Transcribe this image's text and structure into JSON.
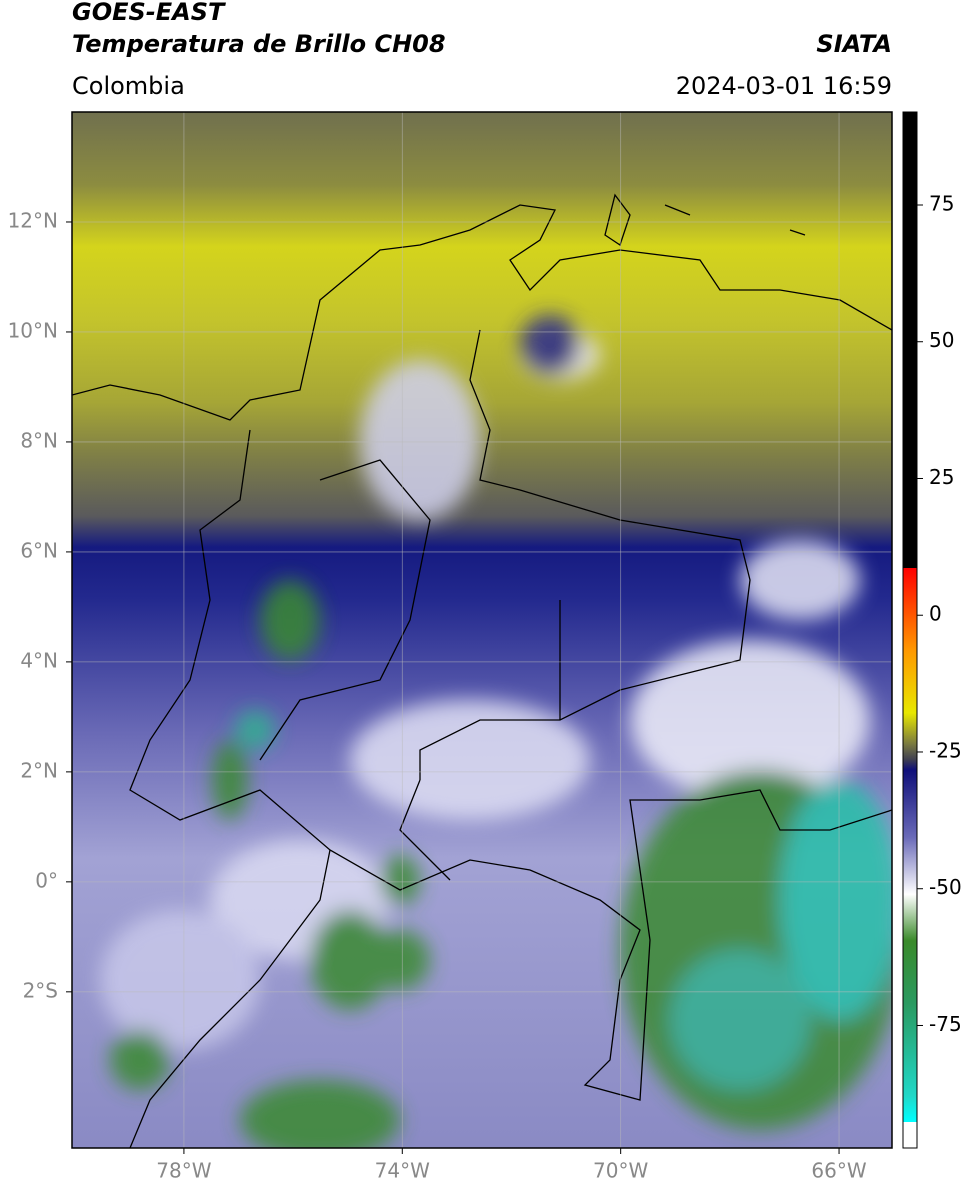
{
  "chart_data": {
    "type": "map",
    "title": "GOES-EAST",
    "subtitle": "Temperatura de Brillo CH08",
    "source": "SIATA",
    "region": "Colombia",
    "datetime": "2024-03-01 16:59",
    "xlim": [
      -80.05,
      -65.03
    ],
    "ylim": [
      -4.84,
      14
    ],
    "xticks": [
      {
        "value": -78,
        "label": "78°W"
      },
      {
        "value": -74,
        "label": "74°W"
      },
      {
        "value": -70,
        "label": "70°W"
      },
      {
        "value": -66,
        "label": "66°W"
      }
    ],
    "yticks": [
      {
        "value": 12,
        "label": "12°N"
      },
      {
        "value": 10,
        "label": "10°N"
      },
      {
        "value": 8,
        "label": "8°N"
      },
      {
        "value": 6,
        "label": "6°N"
      },
      {
        "value": 4,
        "label": "4°N"
      },
      {
        "value": 2,
        "label": "2°N"
      },
      {
        "value": 0,
        "label": "0°"
      },
      {
        "value": -2,
        "label": "2°S"
      }
    ],
    "grid": true,
    "colorbar": {
      "lim": [
        -97.4,
        92
      ],
      "ticks": [
        75,
        50,
        25,
        0,
        -25,
        -50,
        -75
      ]
    }
  }
}
